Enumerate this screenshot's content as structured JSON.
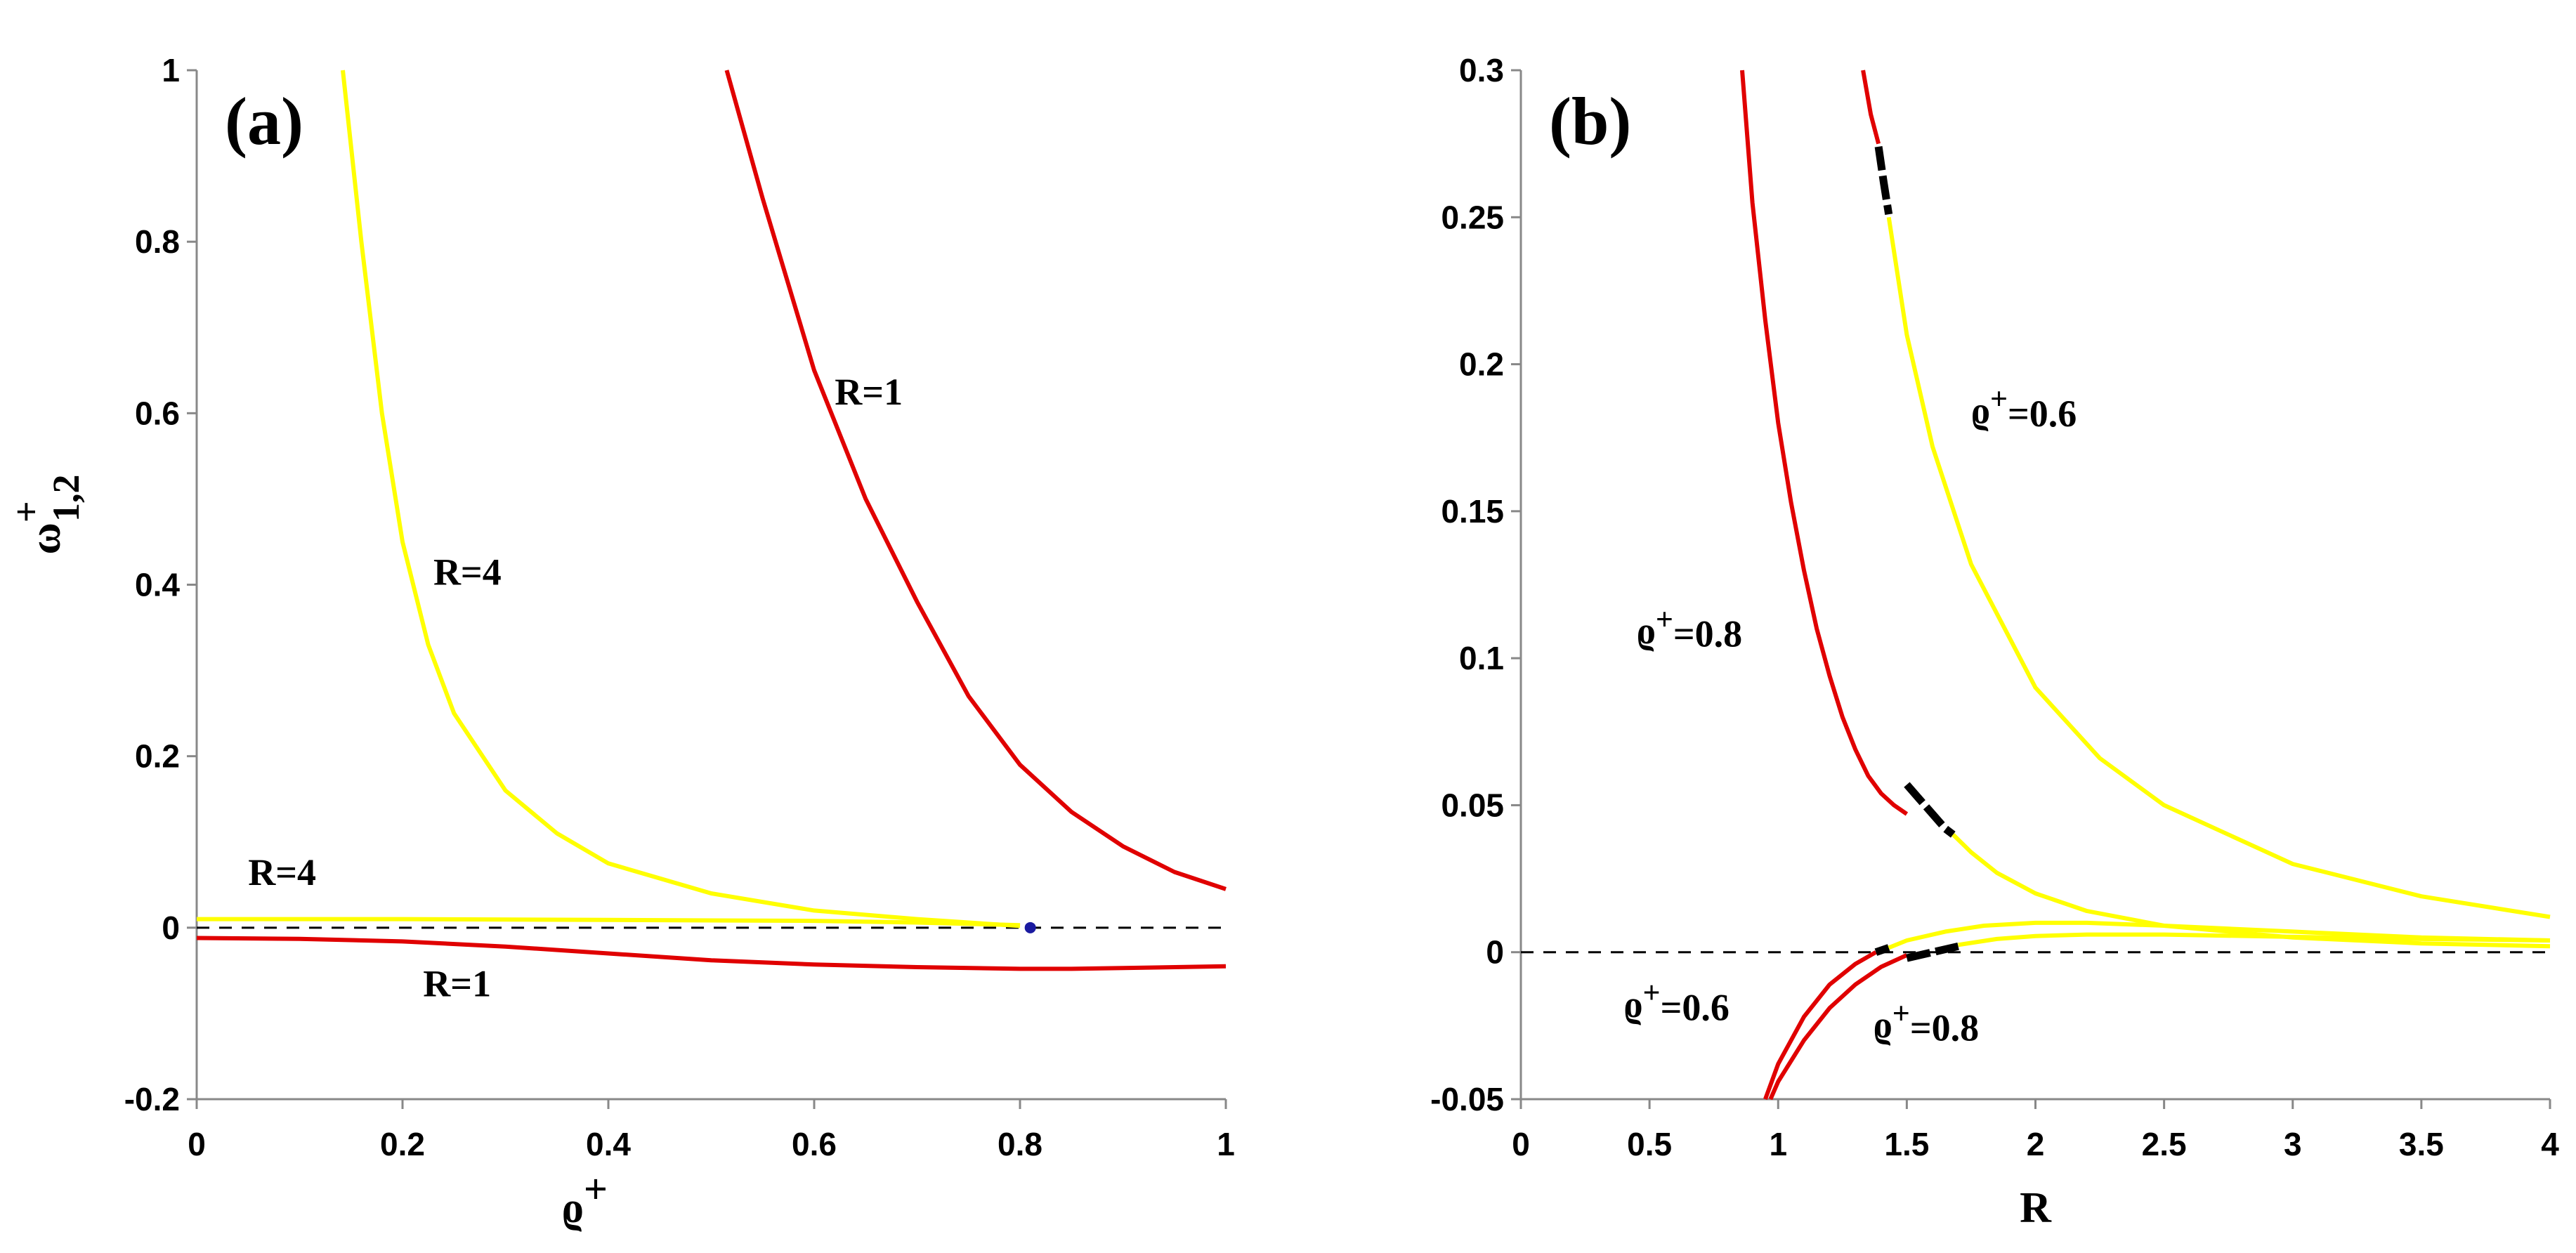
{
  "chart_data": [
    {
      "type": "line",
      "panel_label": "(a)",
      "xlabel": "ϱ+",
      "ylabel": "ω+1,2",
      "xlim": [
        0,
        1
      ],
      "ylim": [
        -0.2,
        1
      ],
      "xticks": [
        "0",
        "0.2",
        "0.4",
        "0.6",
        "0.8",
        "1"
      ],
      "yticks": [
        "-0.2",
        "0",
        "0.2",
        "0.4",
        "0.6",
        "0.8",
        "1"
      ],
      "grid": false,
      "reference_line": {
        "y": 0,
        "style": "dashed",
        "color": "#000000"
      },
      "series": [
        {
          "name": "R=4 upper",
          "color": "#ffff00",
          "x": [
            0.142,
            0.16,
            0.18,
            0.2,
            0.225,
            0.25,
            0.3,
            0.35,
            0.4,
            0.5,
            0.6,
            0.7,
            0.8
          ],
          "y": [
            1.0,
            0.8,
            0.6,
            0.45,
            0.33,
            0.25,
            0.16,
            0.11,
            0.075,
            0.04,
            0.02,
            0.01,
            0.002
          ]
        },
        {
          "name": "R=4 lower",
          "color": "#ffff00",
          "x": [
            0,
            0.2,
            0.4,
            0.6,
            0.7,
            0.8
          ],
          "y": [
            0.01,
            0.01,
            0.009,
            0.008,
            0.006,
            0.003
          ]
        },
        {
          "name": "R=1 upper",
          "color": "#e00000",
          "x": [
            0.515,
            0.55,
            0.6,
            0.65,
            0.7,
            0.75,
            0.8,
            0.85,
            0.9,
            0.95,
            1.0
          ],
          "y": [
            1.0,
            0.85,
            0.65,
            0.5,
            0.38,
            0.27,
            0.19,
            0.135,
            0.095,
            0.065,
            0.045
          ]
        },
        {
          "name": "R=1 lower",
          "color": "#e00000",
          "x": [
            0,
            0.1,
            0.2,
            0.3,
            0.4,
            0.5,
            0.6,
            0.7,
            0.8,
            0.85,
            0.9,
            1.0
          ],
          "y": [
            -0.012,
            -0.013,
            -0.016,
            -0.022,
            -0.03,
            -0.038,
            -0.043,
            -0.046,
            -0.048,
            -0.048,
            -0.047,
            -0.045
          ]
        }
      ],
      "points": [
        {
          "name": "endpoint",
          "x": 0.81,
          "y": 0.0,
          "color": "#1a1aa0"
        }
      ],
      "annotations": [
        {
          "text": "R=4",
          "x": 0.23,
          "y": 0.4
        },
        {
          "text": "R=1",
          "x": 0.62,
          "y": 0.61
        },
        {
          "text": "R=4",
          "x": 0.05,
          "y": 0.05
        },
        {
          "text": "R=1",
          "x": 0.22,
          "y": -0.08
        }
      ]
    },
    {
      "type": "line",
      "panel_label": "(b)",
      "xlabel": "R",
      "ylabel": "",
      "xlim": [
        0,
        4
      ],
      "ylim": [
        -0.05,
        0.3
      ],
      "xticks": [
        "0",
        "0.5",
        "1",
        "1.5",
        "2",
        "2.5",
        "3",
        "3.5",
        "4"
      ],
      "yticks": [
        "-0.05",
        "0",
        "0.05",
        "0.1",
        "0.15",
        "0.2",
        "0.25",
        "0.3"
      ],
      "grid": false,
      "reference_line": {
        "y": 0,
        "style": "dashed",
        "color": "#000000"
      },
      "series": [
        {
          "name": "ϱ+=0.8 upper, red part",
          "color": "#e00000",
          "x": [
            0.86,
            0.9,
            0.95,
            1.0,
            1.05,
            1.1,
            1.15,
            1.2,
            1.25,
            1.3,
            1.35,
            1.4,
            1.45,
            1.5
          ],
          "y": [
            0.3,
            0.255,
            0.215,
            0.18,
            0.153,
            0.13,
            0.11,
            0.094,
            0.08,
            0.069,
            0.06,
            0.054,
            0.05,
            0.047
          ]
        },
        {
          "name": "ϱ+=0.8 upper, dashed part",
          "color": "#000000",
          "dashed": true,
          "x": [
            1.5,
            1.55,
            1.6,
            1.65,
            1.68
          ],
          "y": [
            0.057,
            0.052,
            0.047,
            0.042,
            0.04
          ]
        },
        {
          "name": "ϱ+=0.8 upper, yellow part",
          "color": "#ffff00",
          "x": [
            1.68,
            1.75,
            1.85,
            2.0,
            2.2,
            2.5,
            3.0,
            3.5,
            4.0
          ],
          "y": [
            0.04,
            0.034,
            0.027,
            0.02,
            0.014,
            0.009,
            0.005,
            0.003,
            0.002
          ]
        },
        {
          "name": "ϱ+=0.6 upper, red part",
          "color": "#e00000",
          "x": [
            1.33,
            1.36,
            1.39
          ],
          "y": [
            0.3,
            0.285,
            0.275
          ]
        },
        {
          "name": "ϱ+=0.6 upper, dashed part",
          "color": "#000000",
          "dashed": true,
          "x": [
            1.39,
            1.41,
            1.43
          ],
          "y": [
            0.274,
            0.262,
            0.251
          ]
        },
        {
          "name": "ϱ+=0.6 upper, yellow part",
          "color": "#ffff00",
          "x": [
            1.43,
            1.5,
            1.6,
            1.75,
            2.0,
            2.25,
            2.5,
            3.0,
            3.5,
            4.0
          ],
          "y": [
            0.25,
            0.21,
            0.172,
            0.132,
            0.09,
            0.066,
            0.05,
            0.03,
            0.019,
            0.012
          ]
        },
        {
          "name": "ϱ+=0.6 lower, red part",
          "color": "#e00000",
          "x": [
            0.95,
            1.0,
            1.1,
            1.2,
            1.3,
            1.38
          ],
          "y": [
            -0.05,
            -0.038,
            -0.022,
            -0.011,
            -0.004,
            0.0
          ]
        },
        {
          "name": "ϱ+=0.6 lower, dashed part",
          "color": "#000000",
          "dashed": true,
          "x": [
            1.38,
            1.43
          ],
          "y": [
            0.0,
            0.0015
          ]
        },
        {
          "name": "ϱ+=0.6 lower, yellow part",
          "color": "#ffff00",
          "x": [
            1.43,
            1.5,
            1.65,
            1.8,
            2.0,
            2.2,
            2.5,
            3.0,
            3.5,
            4.0
          ],
          "y": [
            0.0015,
            0.004,
            0.007,
            0.009,
            0.01,
            0.01,
            0.009,
            0.007,
            0.005,
            0.004
          ]
        },
        {
          "name": "ϱ+=0.8 lower, red part",
          "color": "#e00000",
          "x": [
            0.97,
            1.0,
            1.1,
            1.2,
            1.3,
            1.4,
            1.5
          ],
          "y": [
            -0.05,
            -0.044,
            -0.03,
            -0.019,
            -0.011,
            -0.005,
            -0.001
          ]
        },
        {
          "name": "ϱ+=0.8 lower, dashed part",
          "color": "#000000",
          "dashed": true,
          "x": [
            1.5,
            1.6,
            1.7
          ],
          "y": [
            -0.002,
            0.0,
            0.002
          ]
        },
        {
          "name": "ϱ+=0.8 lower, yellow part",
          "color": "#ffff00",
          "x": [
            1.7,
            1.85,
            2.0,
            2.2,
            2.5,
            3.0,
            3.5,
            4.0
          ],
          "y": [
            0.0025,
            0.0045,
            0.0055,
            0.006,
            0.006,
            0.0052,
            0.0045,
            0.004
          ]
        }
      ],
      "annotations": [
        {
          "text": "ϱ+=0.6",
          "x": 1.75,
          "y": 0.18
        },
        {
          "text": "ϱ+=0.8",
          "x": 0.45,
          "y": 0.105
        },
        {
          "text": "ϱ+=0.6",
          "x": 0.4,
          "y": -0.022
        },
        {
          "text": "ϱ+=0.8",
          "x": 1.37,
          "y": -0.029
        }
      ]
    }
  ]
}
